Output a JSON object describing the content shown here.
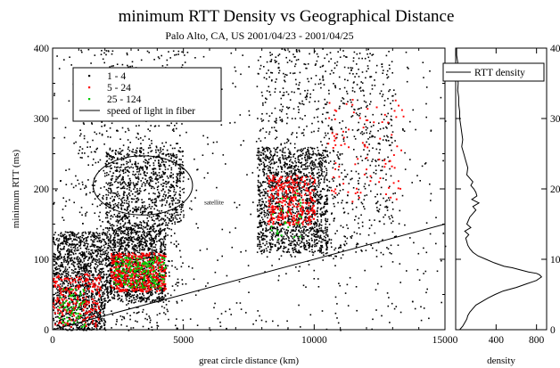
{
  "chart_data": [
    {
      "type": "scatter",
      "title": "minimum RTT Density vs Geographical Distance",
      "subtitle": "Palo Alto, CA, US    2001/04/23 - 2001/04/25",
      "xlabel": "great circle distance (km)",
      "ylabel": "minimum RTT (ms)",
      "xlim": [
        0,
        15000
      ],
      "ylim": [
        0,
        400
      ],
      "x_ticks": [
        "0",
        "5000",
        "10000",
        "15000"
      ],
      "y_ticks": [
        "0",
        "100",
        "200",
        "300",
        "400"
      ],
      "legend_position": "top-left",
      "series": [
        {
          "name": "1 - 4",
          "color": "#000000",
          "clusters": [
            {
              "x": [
                0,
                2000
              ],
              "y": [
                0,
                140
              ],
              "count": 1300
            },
            {
              "x": [
                2000,
                4300
              ],
              "y": [
                40,
                150
              ],
              "count": 1300
            },
            {
              "x": [
                2000,
                5000
              ],
              "y": [
                150,
                260
              ],
              "count": 800
            },
            {
              "x": [
                1000,
                5000
              ],
              "y": [
                0,
                400
              ],
              "count": 700
            },
            {
              "x": [
                7800,
                10500
              ],
              "y": [
                110,
                260
              ],
              "count": 1300
            },
            {
              "x": [
                7800,
                13000
              ],
              "y": [
                100,
                400
              ],
              "count": 900
            },
            {
              "x": [
                0,
                15000
              ],
              "y": [
                0,
                400
              ],
              "count": 600
            }
          ]
        },
        {
          "name": "5 - 24",
          "color": "#ff0000",
          "clusters": [
            {
              "x": [
                0,
                1800
              ],
              "y": [
                5,
                80
              ],
              "count": 260
            },
            {
              "x": [
                2200,
                4300
              ],
              "y": [
                55,
                110
              ],
              "count": 500
            },
            {
              "x": [
                8200,
                10000
              ],
              "y": [
                150,
                220
              ],
              "count": 320
            },
            {
              "x": [
                10500,
                13500
              ],
              "y": [
                180,
                330
              ],
              "count": 90
            }
          ]
        },
        {
          "name": "25 - 124",
          "color": "#00cc00",
          "clusters": [
            {
              "x": [
                200,
                1200
              ],
              "y": [
                5,
                60
              ],
              "count": 60
            },
            {
              "x": [
                2300,
                4300
              ],
              "y": [
                60,
                105
              ],
              "count": 180
            },
            {
              "x": [
                8300,
                9500
              ],
              "y": [
                130,
                200
              ],
              "count": 30
            }
          ]
        },
        {
          "name": "speed of light in fiber",
          "type": "line",
          "color": "#000000",
          "x": [
            0,
            15000
          ],
          "y": [
            0,
            150
          ]
        }
      ],
      "annotations": [
        {
          "text": "satellite",
          "x": 5800,
          "y": 178,
          "ellipse": {
            "cx": 3450,
            "cy": 205,
            "rx": 1900,
            "ry": 42
          }
        }
      ]
    },
    {
      "type": "line",
      "xlabel": "density",
      "xlim": [
        0,
        900
      ],
      "ylim": [
        0,
        400
      ],
      "x_ticks": [
        "0",
        "400",
        "800"
      ],
      "y_ticks": [
        "0",
        "100",
        "200",
        "300",
        "400"
      ],
      "legend_position": "top-right",
      "series": [
        {
          "name": "RTT density",
          "color": "#000000",
          "y": [
            0,
            5,
            10,
            15,
            20,
            25,
            30,
            35,
            40,
            45,
            50,
            55,
            60,
            65,
            68,
            70,
            72,
            75,
            78,
            80,
            82,
            85,
            88,
            90,
            95,
            100,
            105,
            110,
            115,
            120,
            125,
            130,
            135,
            140,
            145,
            150,
            160,
            170,
            175,
            180,
            185,
            190,
            195,
            200,
            205,
            210,
            220,
            230,
            240,
            250,
            260,
            270,
            280,
            290,
            300,
            310,
            320,
            330,
            340,
            350,
            360,
            370,
            380,
            390,
            400
          ],
          "x": [
            40,
            70,
            90,
            110,
            120,
            140,
            170,
            200,
            260,
            320,
            390,
            470,
            600,
            700,
            760,
            800,
            820,
            850,
            830,
            800,
            720,
            640,
            560,
            480,
            380,
            300,
            220,
            170,
            140,
            120,
            110,
            100,
            130,
            90,
            150,
            110,
            140,
            200,
            170,
            230,
            160,
            210,
            200,
            180,
            150,
            170,
            110,
            120,
            100,
            80,
            60,
            70,
            60,
            50,
            40,
            40,
            30,
            30,
            20,
            25,
            20,
            15,
            20,
            10,
            10
          ]
        }
      ]
    }
  ]
}
